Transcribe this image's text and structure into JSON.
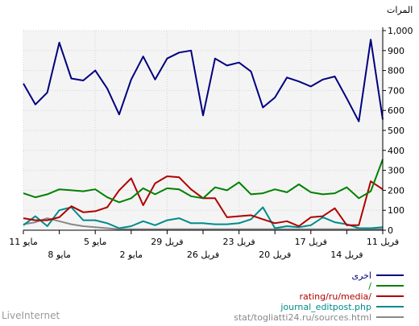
{
  "chart_data": {
    "type": "line",
    "ylabel": "المرات",
    "ylim": [
      0,
      1000
    ],
    "y_ticks": [
      "0",
      "100",
      "200",
      "300",
      "400",
      "500",
      "600",
      "700",
      "800",
      "900",
      "1,000"
    ],
    "x_ticks_row1": [
      "11 مايو",
      "5 مايو",
      "29 فريل",
      "23 فريل",
      "17 فريل",
      "11 فريل"
    ],
    "x_ticks_row2": [
      "8 مايو",
      "2 مايو",
      "26 فريل",
      "20 فريل",
      "14 فريل"
    ],
    "grid": true,
    "legend_position": "bottom-right",
    "x_count": 31,
    "series": [
      {
        "name": "اخرى",
        "color": "#00007f",
        "values": [
          555,
          955,
          545,
          660,
          770,
          755,
          720,
          745,
          765,
          665,
          615,
          795,
          840,
          825,
          860,
          575,
          900,
          890,
          860,
          755,
          870,
          755,
          580,
          710,
          800,
          750,
          760,
          940,
          690,
          630,
          735
        ]
      },
      {
        "name": "/",
        "color": "#008000",
        "values": [
          355,
          195,
          160,
          215,
          185,
          180,
          190,
          230,
          190,
          205,
          185,
          180,
          240,
          200,
          215,
          160,
          170,
          205,
          210,
          180,
          210,
          160,
          140,
          165,
          205,
          195,
          200,
          205,
          180,
          165,
          185
        ]
      },
      {
        "name": "rating/ru/media/",
        "color": "#b00000",
        "values": [
          205,
          245,
          25,
          25,
          110,
          70,
          65,
          20,
          45,
          35,
          55,
          75,
          70,
          65,
          160,
          160,
          205,
          265,
          270,
          235,
          125,
          260,
          200,
          115,
          95,
          90,
          120,
          65,
          50,
          50,
          60
        ]
      },
      {
        "name": "journal_editpost.php",
        "color": "#008b8b",
        "values": [
          15,
          10,
          10,
          30,
          40,
          65,
          25,
          15,
          20,
          10,
          115,
          55,
          35,
          30,
          30,
          35,
          35,
          60,
          50,
          25,
          45,
          20,
          10,
          35,
          50,
          50,
          115,
          100,
          20,
          70,
          25
        ]
      },
      {
        "name": "stat/togliatti24.ru/sources.html",
        "color": "#888888",
        "values": [
          5,
          5,
          5,
          5,
          5,
          5,
          5,
          5,
          5,
          5,
          5,
          5,
          5,
          5,
          5,
          5,
          5,
          5,
          5,
          5,
          5,
          5,
          5,
          10,
          15,
          20,
          30,
          45,
          60,
          40,
          30
        ]
      }
    ]
  },
  "brand": "LiveInternet"
}
